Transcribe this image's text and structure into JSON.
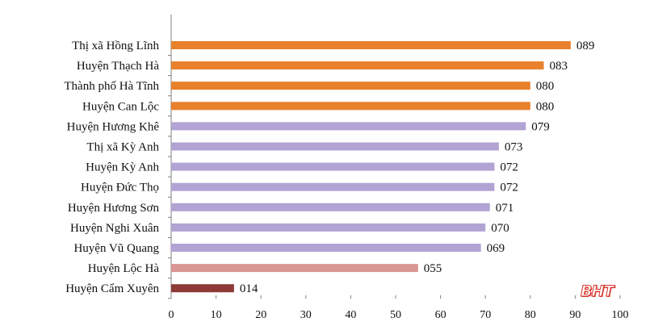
{
  "chart_data": {
    "type": "bar",
    "orientation": "horizontal",
    "categories": [
      "Thị xã Hồng Lĩnh",
      "Huyện Thạch Hà",
      "Thành phố Hà Tĩnh",
      "Huyện Can Lộc",
      "Huyện Hương Khê",
      "Thị xã Kỳ Anh",
      "Huyện Kỳ Anh",
      "Huyện Đức Thọ",
      "Huyện Hương Sơn",
      "Huyện Nghi Xuân",
      "Huyện Vũ Quang",
      "Huyện Lộc Hà",
      "Huyện Cẩm Xuyên"
    ],
    "values": [
      89,
      83,
      80,
      80,
      79,
      73,
      72,
      72,
      71,
      70,
      69,
      55,
      14
    ],
    "value_labels": [
      "089",
      "083",
      "080",
      "080",
      "079",
      "073",
      "072",
      "072",
      "071",
      "070",
      "069",
      "055",
      "014"
    ],
    "bar_colors": [
      "#e8802c",
      "#e8802c",
      "#e8802c",
      "#e8802c",
      "#b1a3d3",
      "#b1a3d3",
      "#b1a3d3",
      "#b1a3d3",
      "#b1a3d3",
      "#b1a3d3",
      "#b1a3d3",
      "#d99693",
      "#8e3a37"
    ],
    "xlim": [
      0,
      100
    ],
    "xticks": [
      0,
      10,
      20,
      30,
      40,
      50,
      60,
      70,
      80,
      90,
      100
    ],
    "title": "",
    "xlabel": "",
    "ylabel": "",
    "grid": false,
    "legend": "none"
  },
  "watermark": {
    "text": "BHT",
    "color": "#d8322b"
  }
}
